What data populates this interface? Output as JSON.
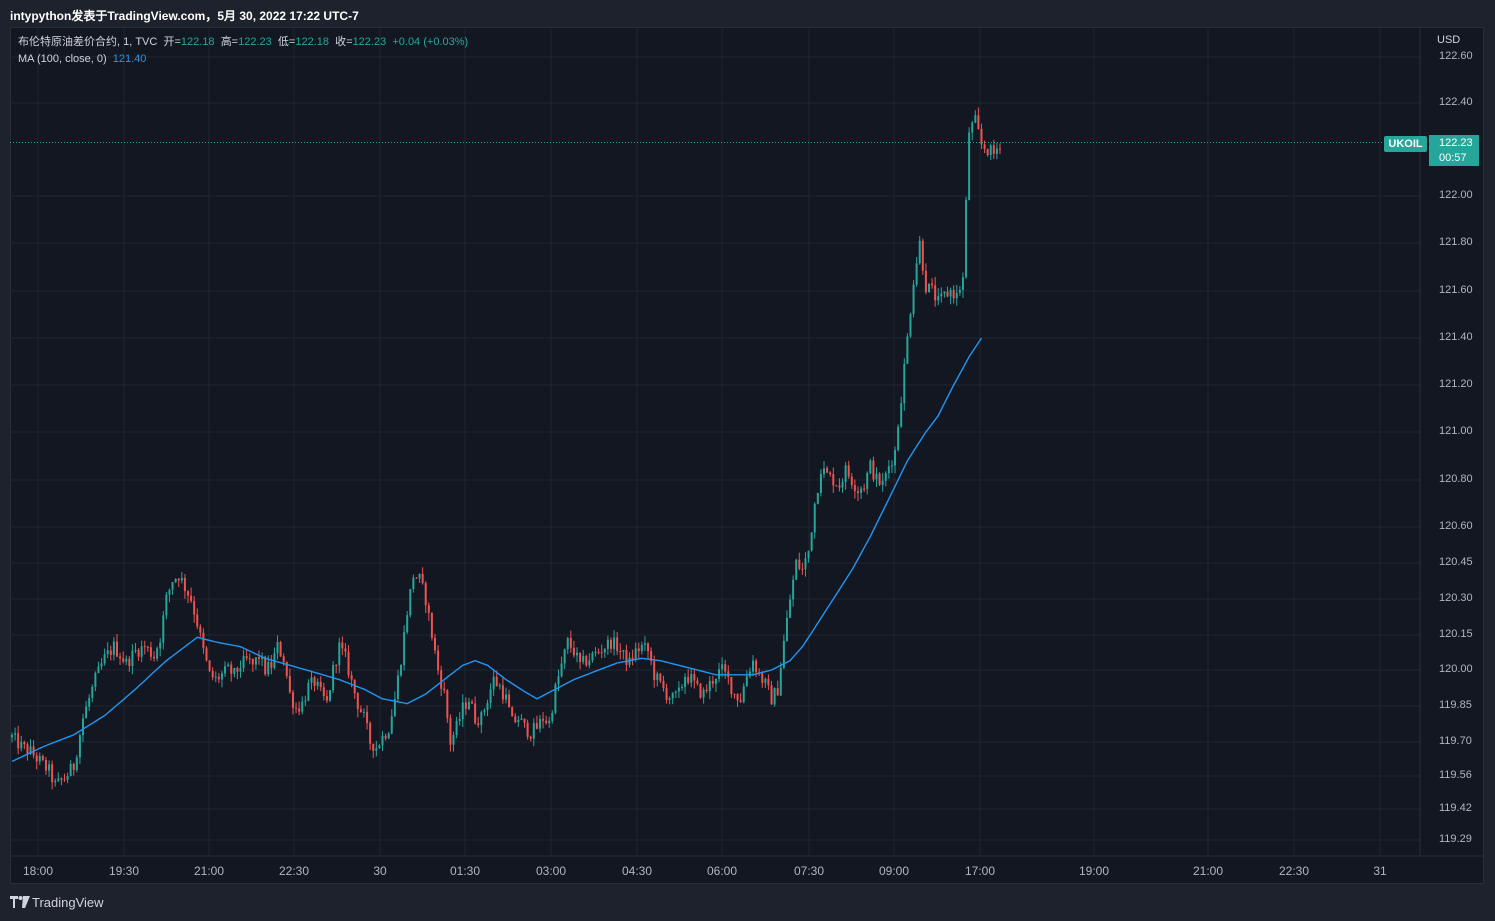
{
  "topbar": {
    "publisher": "intypython发表于TradingView.com，5月 30, 2022 17:22 UTC-7"
  },
  "legend": {
    "instrument": "布伦特原油差价合约, 1, TVC",
    "open_label": "开=",
    "open": "122.18",
    "high_label": "高=",
    "high": "122.23",
    "low_label": "低=",
    "low": "122.18",
    "close_label": "收=",
    "close": "122.23",
    "change": "+0.04 (+0.03%)",
    "ma_label": "MA (100, close, 0)",
    "ma_value": "121.40"
  },
  "currency": "USD",
  "last_price": {
    "symbol": "UKOIL",
    "price": "122.23",
    "countdown": "00:57"
  },
  "chart_data": {
    "type": "candlestick",
    "title": "",
    "y_axis_labels": [
      "122.60",
      "122.40",
      "122.00",
      "121.80",
      "121.60",
      "121.40",
      "121.20",
      "121.00",
      "120.80",
      "120.60",
      "120.45",
      "120.30",
      "120.15",
      "120.00",
      "119.85",
      "119.70",
      "119.56",
      "119.42",
      "119.29"
    ],
    "x_axis_labels": [
      "18:00",
      "19:30",
      "21:00",
      "22:30",
      "30",
      "01:30",
      "03:00",
      "04:30",
      "06:00",
      "07:30",
      "09:00",
      "17:00",
      "19:00",
      "21:00",
      "22:30",
      "31"
    ],
    "series": [
      {
        "name": "UKOIL",
        "type": "candlestick",
        "last": 122.23
      },
      {
        "name": "MA (100, close, 0)",
        "type": "line",
        "last": 121.4
      }
    ],
    "price_path": [
      [
        0,
        119.72
      ],
      [
        3,
        119.68
      ],
      [
        6,
        119.66
      ],
      [
        9,
        119.62
      ],
      [
        12,
        119.58
      ],
      [
        14,
        119.52
      ],
      [
        17,
        119.55
      ],
      [
        20,
        119.6
      ],
      [
        23,
        119.8
      ],
      [
        27,
        119.96
      ],
      [
        30,
        120.05
      ],
      [
        33,
        120.1
      ],
      [
        37,
        120.03
      ],
      [
        40,
        120.08
      ],
      [
        43,
        120.1
      ],
      [
        46,
        120.06
      ],
      [
        48,
        120.14
      ],
      [
        50,
        120.3
      ],
      [
        52,
        120.38
      ],
      [
        54,
        120.4
      ],
      [
        56,
        120.35
      ],
      [
        58,
        120.3
      ],
      [
        60,
        120.2
      ],
      [
        62,
        120.08
      ],
      [
        64,
        119.98
      ],
      [
        66,
        119.96
      ],
      [
        68,
        119.98
      ],
      [
        70,
        120.0
      ],
      [
        72,
        119.98
      ],
      [
        74,
        120.02
      ],
      [
        76,
        120.04
      ],
      [
        78,
        120.02
      ],
      [
        80,
        120.06
      ],
      [
        82,
        120.0
      ],
      [
        84,
        120.02
      ],
      [
        86,
        120.1
      ],
      [
        88,
        120.05
      ],
      [
        90,
        119.9
      ],
      [
        92,
        119.84
      ],
      [
        94,
        119.86
      ],
      [
        96,
        119.93
      ],
      [
        98,
        119.95
      ],
      [
        100,
        119.9
      ],
      [
        102,
        119.86
      ],
      [
        104,
        120.0
      ],
      [
        106,
        120.1
      ],
      [
        108,
        120.05
      ],
      [
        110,
        119.95
      ],
      [
        112,
        119.86
      ],
      [
        114,
        119.8
      ],
      [
        116,
        119.7
      ],
      [
        118,
        119.68
      ],
      [
        120,
        119.72
      ],
      [
        122,
        119.76
      ],
      [
        124,
        119.88
      ],
      [
        126,
        120.05
      ],
      [
        128,
        120.25
      ],
      [
        130,
        120.4
      ],
      [
        132,
        120.38
      ],
      [
        134,
        120.3
      ],
      [
        136,
        120.15
      ],
      [
        138,
        120.0
      ],
      [
        140,
        119.9
      ],
      [
        142,
        119.7
      ],
      [
        144,
        119.76
      ],
      [
        146,
        119.84
      ],
      [
        148,
        119.88
      ],
      [
        150,
        119.8
      ],
      [
        152,
        119.8
      ],
      [
        154,
        119.88
      ],
      [
        156,
        119.96
      ],
      [
        158,
        119.93
      ],
      [
        160,
        119.88
      ],
      [
        162,
        119.78
      ],
      [
        164,
        119.8
      ],
      [
        166,
        119.76
      ],
      [
        168,
        119.74
      ],
      [
        170,
        119.76
      ],
      [
        172,
        119.8
      ],
      [
        174,
        119.78
      ],
      [
        176,
        119.92
      ],
      [
        178,
        120.02
      ],
      [
        180,
        120.12
      ],
      [
        182,
        120.08
      ],
      [
        184,
        120.02
      ],
      [
        186,
        120.04
      ],
      [
        188,
        120.06
      ],
      [
        190,
        120.08
      ],
      [
        192,
        120.1
      ],
      [
        194,
        120.12
      ],
      [
        196,
        120.1
      ],
      [
        198,
        120.06
      ],
      [
        200,
        120.03
      ],
      [
        202,
        120.08
      ],
      [
        204,
        120.1
      ],
      [
        206,
        120.08
      ],
      [
        208,
        119.98
      ],
      [
        210,
        119.94
      ],
      [
        212,
        119.9
      ],
      [
        214,
        119.88
      ],
      [
        216,
        119.9
      ],
      [
        218,
        119.98
      ],
      [
        220,
        119.96
      ],
      [
        222,
        119.92
      ],
      [
        224,
        119.9
      ],
      [
        226,
        119.94
      ],
      [
        228,
        119.98
      ],
      [
        230,
        120.0
      ],
      [
        232,
        119.96
      ],
      [
        234,
        119.9
      ],
      [
        236,
        119.88
      ],
      [
        238,
        119.98
      ],
      [
        240,
        120.04
      ],
      [
        242,
        119.98
      ],
      [
        244,
        119.94
      ],
      [
        246,
        119.88
      ],
      [
        248,
        119.92
      ],
      [
        250,
        120.12
      ],
      [
        252,
        120.3
      ],
      [
        254,
        120.45
      ],
      [
        256,
        120.42
      ],
      [
        258,
        120.5
      ],
      [
        260,
        120.7
      ],
      [
        262,
        120.85
      ],
      [
        264,
        120.82
      ],
      [
        266,
        120.8
      ],
      [
        268,
        120.78
      ],
      [
        270,
        120.84
      ],
      [
        272,
        120.8
      ],
      [
        274,
        120.76
      ],
      [
        276,
        120.78
      ],
      [
        278,
        120.86
      ],
      [
        280,
        120.8
      ],
      [
        282,
        120.78
      ],
      [
        284,
        120.86
      ],
      [
        286,
        120.92
      ],
      [
        288,
        121.15
      ],
      [
        290,
        121.4
      ],
      [
        292,
        121.65
      ],
      [
        294,
        121.8
      ],
      [
        296,
        121.62
      ],
      [
        298,
        121.6
      ],
      [
        300,
        121.55
      ],
      [
        302,
        121.58
      ],
      [
        304,
        121.6
      ],
      [
        306,
        121.58
      ],
      [
        308,
        121.65
      ],
      [
        310,
        122.28
      ],
      [
        312,
        122.32
      ],
      [
        314,
        122.22
      ],
      [
        316,
        122.2
      ],
      [
        318,
        122.18
      ],
      [
        320,
        122.23
      ]
    ],
    "ma100": [
      [
        0,
        119.62
      ],
      [
        10,
        119.68
      ],
      [
        20,
        119.73
      ],
      [
        30,
        119.81
      ],
      [
        40,
        119.92
      ],
      [
        50,
        120.04
      ],
      [
        60,
        120.14
      ],
      [
        66,
        120.12
      ],
      [
        74,
        120.1
      ],
      [
        82,
        120.05
      ],
      [
        90,
        120.02
      ],
      [
        98,
        119.99
      ],
      [
        106,
        119.96
      ],
      [
        114,
        119.92
      ],
      [
        120,
        119.88
      ],
      [
        128,
        119.86
      ],
      [
        134,
        119.9
      ],
      [
        140,
        119.96
      ],
      [
        146,
        120.02
      ],
      [
        150,
        120.04
      ],
      [
        154,
        120.02
      ],
      [
        160,
        119.96
      ],
      [
        166,
        119.91
      ],
      [
        170,
        119.88
      ],
      [
        176,
        119.92
      ],
      [
        182,
        119.96
      ],
      [
        190,
        120.0
      ],
      [
        196,
        120.03
      ],
      [
        204,
        120.05
      ],
      [
        210,
        120.04
      ],
      [
        216,
        120.02
      ],
      [
        222,
        120.0
      ],
      [
        228,
        119.98
      ],
      [
        234,
        119.98
      ],
      [
        240,
        119.98
      ],
      [
        246,
        120.0
      ],
      [
        252,
        120.04
      ],
      [
        256,
        120.1
      ],
      [
        260,
        120.18
      ],
      [
        266,
        120.3
      ],
      [
        272,
        120.42
      ],
      [
        278,
        120.56
      ],
      [
        284,
        120.72
      ],
      [
        290,
        120.88
      ],
      [
        296,
        121.0
      ],
      [
        300,
        121.07
      ],
      [
        305,
        121.2
      ],
      [
        310,
        121.32
      ],
      [
        314,
        121.4
      ]
    ]
  }
}
